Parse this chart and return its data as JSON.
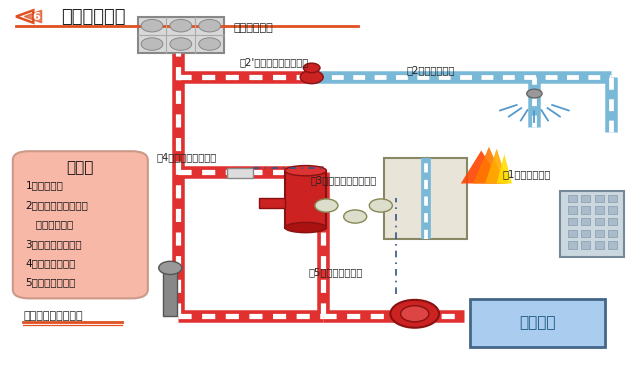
{
  "title": "消防水泵启动",
  "title_number": "6",
  "background_color": "#ffffff",
  "title_color": "#333333",
  "title_line_color": "#e05020",
  "pink_box_color": "#f7b8a8",
  "pink_box_title": "步骤：",
  "steps": [
    "1、发生火灾",
    "2、喷头爆破，同时水",
    "   流指示器动作",
    "3、湿式报警阀动作",
    "4、压力开关动作",
    "5、启动消防水泵"
  ],
  "bottom_label": "湿式系统启泵示意图",
  "pipe_red": "#e03030",
  "pipe_blue": "#7ab8d8",
  "water_tank_label": "高位消防水箱",
  "fire_pool_label": "消防水池",
  "ann1": "第2'步：水流指示器动作",
  "ann2": "第2步：喷头动作",
  "ann3": "第4步：压力开关动作",
  "ann4": "第3步：湿式报警阀动作",
  "ann5": "第1步：火灾发生",
  "ann6": "第5步：消防泵启动"
}
